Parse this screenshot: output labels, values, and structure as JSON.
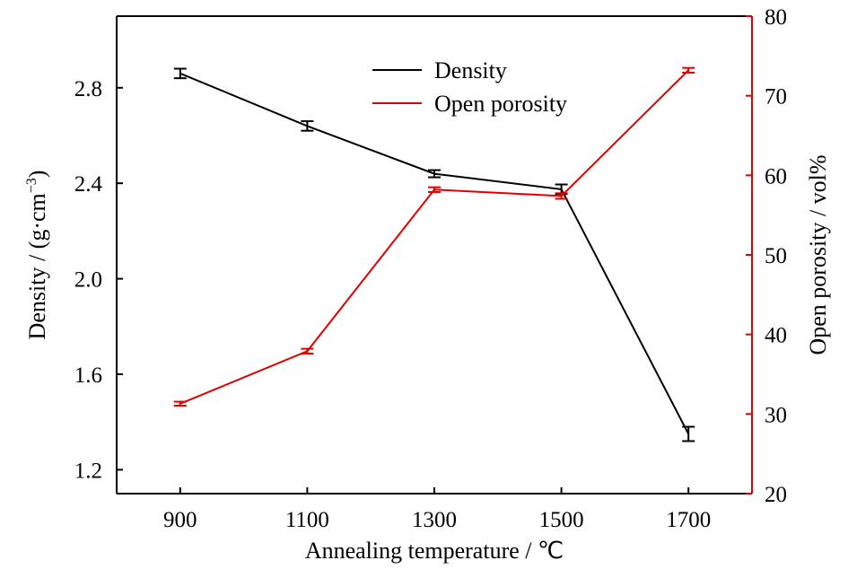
{
  "chart_data": {
    "type": "line",
    "x": [
      900,
      1100,
      1300,
      1500,
      1700
    ],
    "xlabel": "Annealing temperature / ℃",
    "xlim": [
      800,
      1800
    ],
    "x_ticks": [
      "900",
      "1100",
      "1300",
      "1500",
      "1700"
    ],
    "y_left": {
      "label_main": "Density / (g·cm",
      "label_sup": "−3",
      "label_end": ")",
      "lim": [
        1.1,
        3.1
      ],
      "ticks": [
        "1.2",
        "1.6",
        "2.0",
        "2.4",
        "2.8"
      ],
      "color": "#000000"
    },
    "y_right": {
      "label": "Open porosity / vol%",
      "lim": [
        20,
        80
      ],
      "ticks": [
        "20",
        "30",
        "40",
        "50",
        "60",
        "70",
        "80"
      ],
      "color": "#e00000"
    },
    "series": [
      {
        "name": "Density",
        "axis": "left",
        "color": "#000000",
        "values": [
          2.86,
          2.64,
          2.44,
          2.375,
          1.35
        ],
        "errors": [
          0.02,
          0.02,
          0.015,
          0.02,
          0.03
        ]
      },
      {
        "name": "Open porosity",
        "axis": "right",
        "color": "#e00000",
        "values": [
          31.3,
          37.9,
          58.2,
          57.4,
          73.2
        ],
        "errors": [
          0.25,
          0.3,
          0.3,
          0.35,
          0.3
        ]
      }
    ],
    "legend_position": "top-center",
    "grid": false
  }
}
